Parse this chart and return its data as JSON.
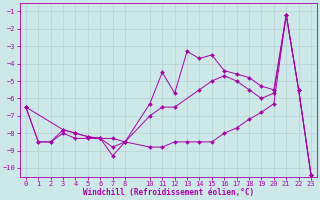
{
  "line1_x": [
    0,
    1,
    2,
    3,
    4,
    5,
    6,
    7,
    8,
    10,
    11,
    12,
    13,
    14,
    15,
    16,
    17,
    18,
    19,
    20,
    21,
    22,
    23
  ],
  "line1_y": [
    -6.5,
    -8.5,
    -8.5,
    -7.8,
    -8.0,
    -8.2,
    -8.3,
    -9.3,
    -8.5,
    -6.3,
    -4.5,
    -5.7,
    -3.3,
    -3.7,
    -3.5,
    -4.4,
    -4.6,
    -4.8,
    -5.3,
    -5.5,
    -1.2,
    -5.5,
    -10.4
  ],
  "line2_x": [
    0,
    3,
    4,
    5,
    6,
    7,
    8,
    10,
    11,
    12,
    14,
    15,
    16,
    17,
    18,
    19,
    20,
    21,
    22,
    23
  ],
  "line2_y": [
    -6.5,
    -7.8,
    -8.0,
    -8.2,
    -8.3,
    -8.3,
    -8.5,
    -7.0,
    -6.5,
    -6.5,
    -5.5,
    -5.0,
    -4.7,
    -5.0,
    -5.5,
    -6.0,
    -5.7,
    -1.2,
    -5.5,
    -10.4
  ],
  "line3_x": [
    0,
    1,
    2,
    3,
    4,
    5,
    6,
    7,
    8,
    10,
    11,
    12,
    13,
    14,
    15,
    16,
    17,
    18,
    19,
    20,
    21,
    22,
    23
  ],
  "line3_y": [
    -6.5,
    -8.5,
    -8.5,
    -8.0,
    -8.3,
    -8.3,
    -8.3,
    -8.8,
    -8.5,
    -8.8,
    -8.8,
    -8.5,
    -8.5,
    -8.5,
    -8.5,
    -8.0,
    -7.7,
    -7.2,
    -6.8,
    -6.3,
    -1.2,
    -5.5,
    -10.4
  ],
  "line_color": "#AA00AA",
  "marker": "D",
  "marker_size": 2,
  "linewidth": 0.7,
  "bg_color": "#cde8e8",
  "grid_color": "#b0cccc",
  "xlabel": "Windchill (Refroidissement éolien,°C)",
  "ylim": [
    -10.5,
    -0.5
  ],
  "xlim": [
    -0.5,
    23.5
  ],
  "yticks": [
    -10,
    -9,
    -8,
    -7,
    -6,
    -5,
    -4,
    -3,
    -2,
    -1
  ],
  "xticks": [
    0,
    1,
    2,
    3,
    4,
    5,
    6,
    7,
    8,
    10,
    11,
    12,
    13,
    14,
    15,
    16,
    17,
    18,
    19,
    20,
    21,
    22,
    23
  ],
  "tick_fontsize": 5,
  "xlabel_fontsize": 5.5
}
